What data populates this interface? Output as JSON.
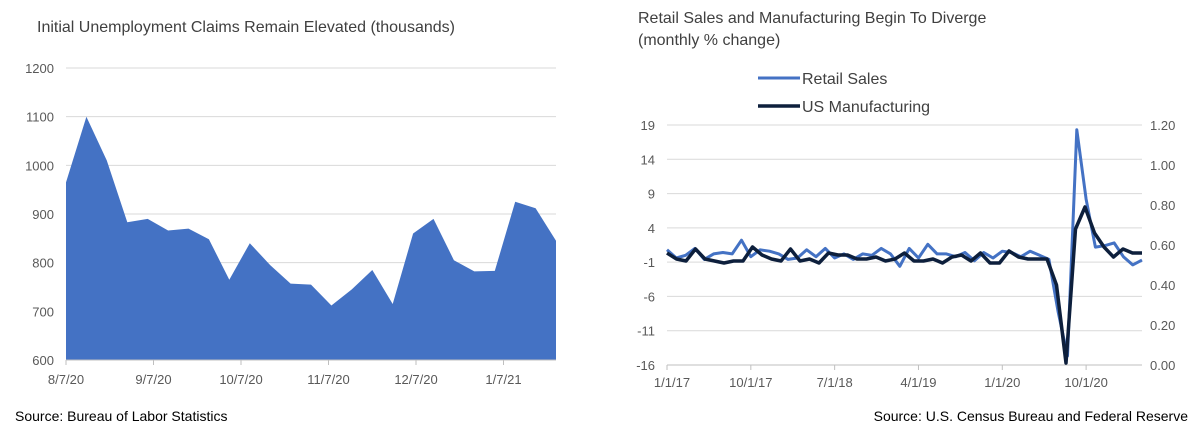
{
  "chart_data": [
    {
      "type": "area",
      "title": "Initial Unemployment Claims Remain Elevated (thousands)",
      "source": "Source: Bureau of Labor Statistics",
      "ylim": [
        600,
        1200
      ],
      "yticks": [
        600,
        700,
        800,
        900,
        1000,
        1100,
        1200
      ],
      "xtick_labels": [
        "8/7/20",
        "9/7/20",
        "10/7/20",
        "11/7/20",
        "12/7/20",
        "1/7/21"
      ],
      "grid": true,
      "color": "#4472C4",
      "values": [
        965,
        1100,
        1010,
        883,
        890,
        866,
        870,
        848,
        765,
        840,
        795,
        757,
        755,
        712,
        745,
        785,
        715,
        860,
        890,
        805,
        782,
        783,
        925,
        912,
        845
      ]
    },
    {
      "type": "line",
      "title_lines": [
        "Retail Sales and Manufacturing Begin To Diverge",
        "(monthly % change)"
      ],
      "source": "Source: U.S. Census Bureau and Federal Reserve",
      "x_tick_labels": [
        "1/1/17",
        "10/1/17",
        "7/1/18",
        "4/1/19",
        "1/1/20",
        "10/1/20"
      ],
      "left_axis": {
        "ylim": [
          -16,
          19
        ],
        "ticks": [
          -16,
          -11,
          -6,
          -1,
          4,
          9,
          14,
          19
        ]
      },
      "right_axis": {
        "ylim": [
          0.0,
          1.2
        ],
        "ticks": [
          "0.00",
          "0.20",
          "0.40",
          "0.60",
          "0.80",
          "1.00",
          "1.20"
        ]
      },
      "grid": true,
      "legend_position": "top",
      "series": [
        {
          "name": "Retail Sales",
          "axis": "left",
          "color": "#4472C4",
          "values": [
            0.8,
            -0.4,
            0.0,
            1.0,
            -0.6,
            0.2,
            0.4,
            0.2,
            2.2,
            -0.2,
            0.8,
            0.6,
            0.2,
            -0.6,
            -0.4,
            0.8,
            -0.2,
            1.0,
            -0.4,
            0.2,
            -0.6,
            0.2,
            0.0,
            1.0,
            0.2,
            -1.6,
            1.0,
            -0.4,
            1.6,
            0.2,
            0.2,
            -0.2,
            0.4,
            -0.8,
            0.4,
            -0.4,
            0.6,
            0.4,
            -0.2,
            0.6,
            0.0,
            -0.6,
            -8.3,
            -14.7,
            18.3,
            8.2,
            1.2,
            1.4,
            1.8,
            -0.2,
            -1.4,
            -0.7
          ]
        },
        {
          "name": "US Manufacturing",
          "axis": "right",
          "color": "#0D1F3C",
          "values": [
            0.56,
            0.53,
            0.52,
            0.58,
            0.53,
            0.52,
            0.51,
            0.52,
            0.52,
            0.59,
            0.55,
            0.53,
            0.52,
            0.58,
            0.52,
            0.53,
            0.51,
            0.56,
            0.55,
            0.55,
            0.53,
            0.53,
            0.54,
            0.52,
            0.53,
            0.56,
            0.52,
            0.52,
            0.53,
            0.51,
            0.54,
            0.55,
            0.52,
            0.56,
            0.51,
            0.51,
            0.57,
            0.54,
            0.53,
            0.53,
            0.53,
            0.4,
            0.01,
            0.68,
            0.79,
            0.66,
            0.59,
            0.54,
            0.58,
            0.56,
            0.56
          ]
        }
      ]
    }
  ]
}
